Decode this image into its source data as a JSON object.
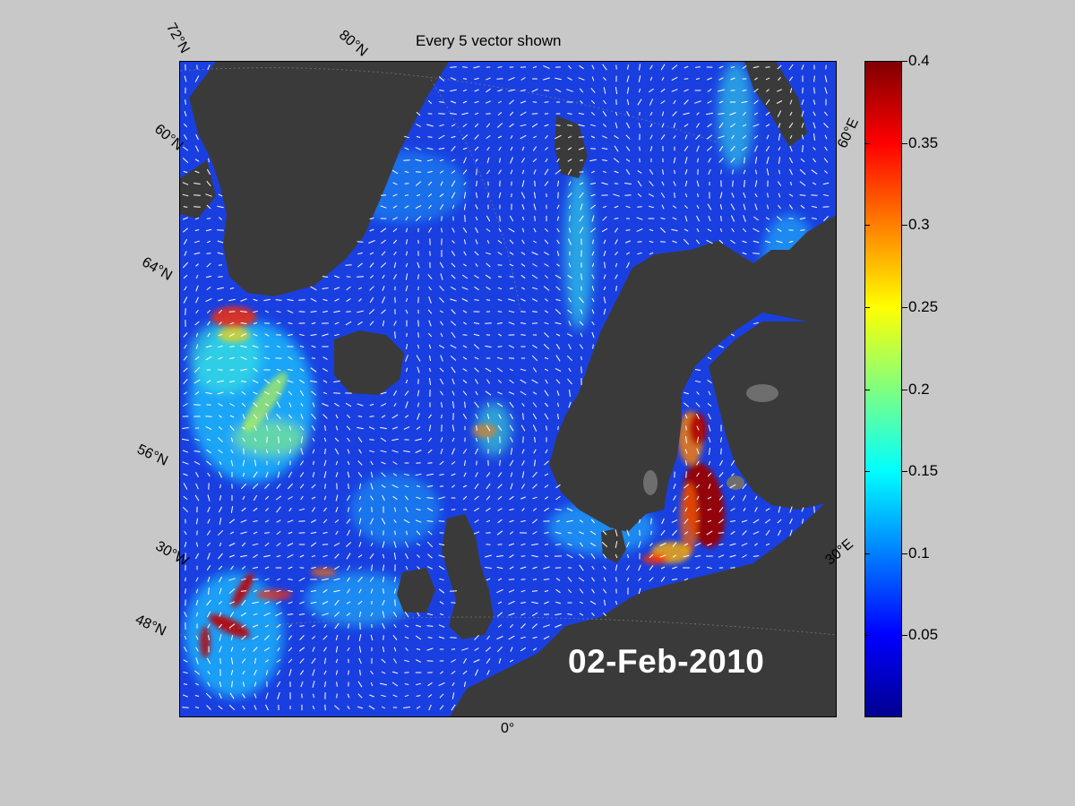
{
  "title": "Every 5 vector shown",
  "date_stamp": "02-Feb-2010",
  "graticule_labels": {
    "lat": [
      "72°N",
      "80°N",
      "60°N",
      "64°N",
      "56°N",
      "48°N"
    ],
    "lon": [
      "30°W",
      "0°",
      "30°E",
      "60°E"
    ]
  },
  "colorbar": {
    "min": 0,
    "max": 0.4,
    "ticks": [
      "0.4",
      "0.35",
      "0.3",
      "0.25",
      "0.2",
      "0.15",
      "0.1",
      "0.05"
    ],
    "colormap": "jet"
  },
  "colors": {
    "background": "#c8c8c8",
    "land": "#3a3a3a",
    "sea_base": "#1a3fe0",
    "vectors": "#ffffff"
  }
}
